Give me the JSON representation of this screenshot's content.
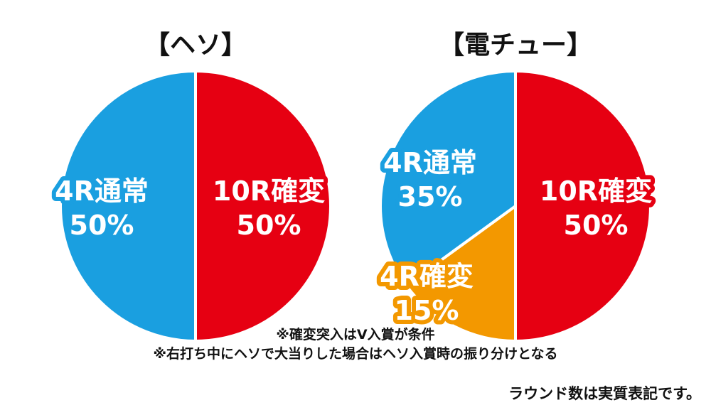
{
  "colors": {
    "red": "#e60012",
    "blue": "#1a9fe0",
    "orange": "#f39800"
  },
  "chart_data": [
    {
      "type": "pie",
      "title": "【ヘソ】",
      "series": [
        {
          "name": "10R確変",
          "value": 50,
          "color": "#e60012"
        },
        {
          "name": "4R通常",
          "value": 50,
          "color": "#1a9fe0"
        }
      ]
    },
    {
      "type": "pie",
      "title": "【電チュー】",
      "series": [
        {
          "name": "10R確変",
          "value": 50,
          "color": "#e60012"
        },
        {
          "name": "4R確変",
          "value": 15,
          "color": "#f39800"
        },
        {
          "name": "4R通常",
          "value": 35,
          "color": "#1a9fe0"
        }
      ]
    }
  ],
  "notes": [
    "※確変突入はV入賞が条件",
    "※右打ち中にヘソで大当りした場合はヘソ入賞時の振り分けとなる"
  ],
  "footer": "ラウンド数は実質表記です。"
}
